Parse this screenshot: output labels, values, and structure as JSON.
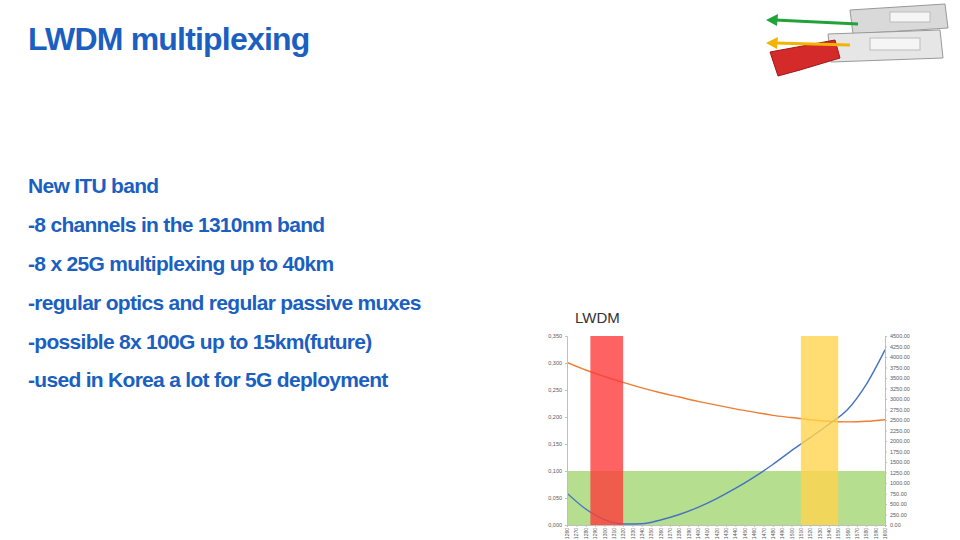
{
  "slide": {
    "title": "LWDM multiplexing",
    "bullets": [
      "New ITU band",
      "-8 channels in the 1310nm band",
      "-8 x 25G multiplexing up to 40km",
      "-regular optics and regular passive muxes",
      "-possible 8x 100G up to 15km(future)",
      "-used in Korea a lot for 5G deployment"
    ]
  },
  "chart_data": {
    "type": "line",
    "title": "LWDM",
    "x": [
      1260,
      1280,
      1300,
      1320,
      1340,
      1360,
      1380,
      1400,
      1420,
      1440,
      1460,
      1480,
      1500,
      1520,
      1540,
      1560,
      1580,
      1600
    ],
    "series": [
      {
        "color": "#ed7d31",
        "values": [
          0.301,
          0.287,
          0.275,
          0.264,
          0.254,
          0.245,
          0.237,
          0.229,
          0.222,
          0.215,
          0.209,
          0.203,
          0.199,
          0.195,
          0.192,
          0.191,
          0.192,
          0.195
        ]
      },
      {
        "color": "#4472c4",
        "axis": "y2",
        "values": [
          758,
          380,
          130,
          25,
          30,
          120,
          250,
          420,
          630,
          870,
          1140,
          1440,
          1770,
          2080,
          2400,
          2750,
          3350,
          4170
        ]
      }
    ],
    "xlim": [
      1260,
      1600
    ],
    "xticks": [
      1260,
      1270,
      1280,
      1290,
      1300,
      1310,
      1320,
      1330,
      1340,
      1350,
      1360,
      1370,
      1380,
      1390,
      1400,
      1410,
      1420,
      1430,
      1440,
      1450,
      1460,
      1470,
      1480,
      1490,
      1500,
      1510,
      1520,
      1530,
      1540,
      1550,
      1560,
      1570,
      1580,
      1590,
      1600
    ],
    "ylim": [
      0,
      0.35
    ],
    "yticks": [
      {
        "value": 0,
        "label": "0,000"
      },
      {
        "value": 0.05,
        "label": "0,050"
      },
      {
        "value": 0.1,
        "label": "0,100"
      },
      {
        "value": 0.15,
        "label": "0,150"
      },
      {
        "value": 0.2,
        "label": "0,200"
      },
      {
        "value": 0.25,
        "label": "0,250"
      },
      {
        "value": 0.3,
        "label": "0,300"
      },
      {
        "value": 0.35,
        "label": "0,350"
      }
    ],
    "y2lim": [
      0,
      4500
    ],
    "y2ticks": [
      {
        "value": 0,
        "label": "0.00"
      },
      {
        "value": 250,
        "label": "250.00"
      },
      {
        "value": 500,
        "label": "500.00"
      },
      {
        "value": 750,
        "label": "750.00"
      },
      {
        "value": 1000,
        "label": "1000.00"
      },
      {
        "value": 1250,
        "label": "1250.00"
      },
      {
        "value": 1500,
        "label": "1500.00"
      },
      {
        "value": 1750,
        "label": "1750.00"
      },
      {
        "value": 2000,
        "label": "2000.00"
      },
      {
        "value": 2250,
        "label": "2250.00"
      },
      {
        "value": 2500,
        "label": "2500.00"
      },
      {
        "value": 2750,
        "label": "2750.00"
      },
      {
        "value": 3000,
        "label": "3000.00"
      },
      {
        "value": 3250,
        "label": "3250.00"
      },
      {
        "value": 3500,
        "label": "3500.00"
      },
      {
        "value": 3750,
        "label": "3750.00"
      },
      {
        "value": 4000,
        "label": "4000.00"
      },
      {
        "value": 4250,
        "label": "4250.00"
      },
      {
        "value": 4500,
        "label": "4500.00"
      }
    ],
    "x_bands": [
      {
        "from": 1285,
        "to": 1320,
        "color": "#ff3b3b"
      },
      {
        "from": 1510,
        "to": 1550,
        "color": "#ffd54f"
      }
    ],
    "y_band": {
      "from": 0,
      "to": 0.1,
      "color": "#9ed36a"
    },
    "grid": false
  }
}
